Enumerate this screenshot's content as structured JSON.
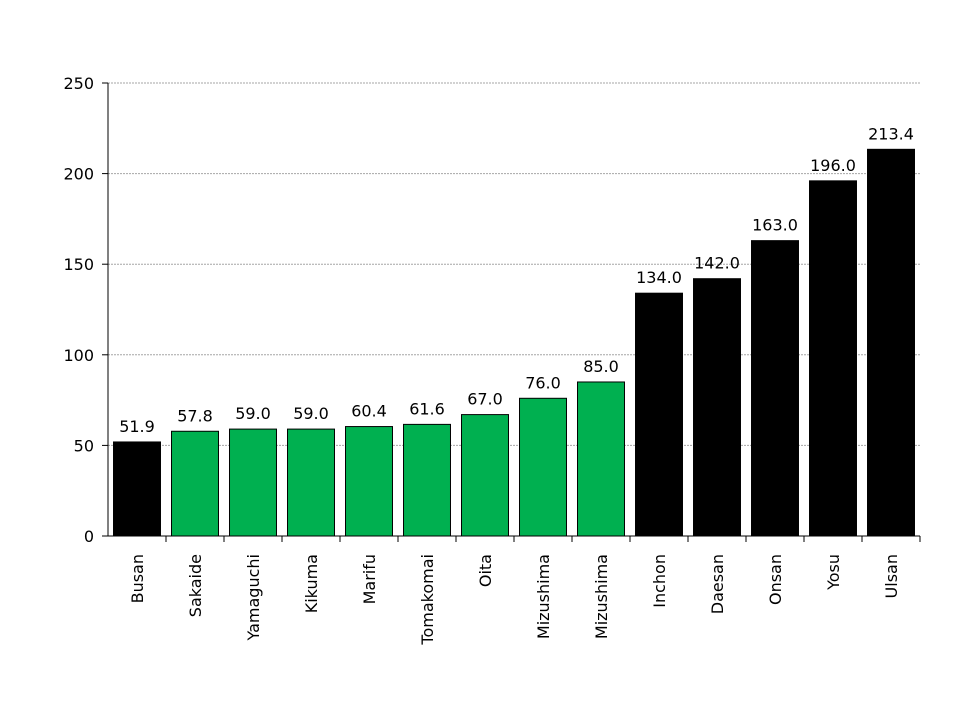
{
  "chart_data": {
    "type": "bar",
    "categories": [
      "Busan",
      "Sakaide",
      "Yamaguchi",
      "Kikuma",
      "Marifu",
      "Tomakomai",
      "Oita",
      "Mizushima",
      "Mizushima",
      "Inchon",
      "Daesan",
      "Onsan",
      "Yosu",
      "Ulsan"
    ],
    "values": [
      51.9,
      57.8,
      59.0,
      59.0,
      60.4,
      61.6,
      67.0,
      76.0,
      85.0,
      134.0,
      142.0,
      163.0,
      196.0,
      213.4
    ],
    "data_labels": [
      "51.9",
      "57.8",
      "59.0",
      "59.0",
      "60.4",
      "61.6",
      "67.0",
      "76.0",
      "85.0",
      "134.0",
      "142.0",
      "163.0",
      "196.0",
      "213.4"
    ],
    "bar_colors": [
      "#000000",
      "#00b050",
      "#00b050",
      "#00b050",
      "#00b050",
      "#00b050",
      "#00b050",
      "#00b050",
      "#00b050",
      "#000000",
      "#000000",
      "#000000",
      "#000000",
      "#000000"
    ],
    "title": "",
    "xlabel": "",
    "ylabel": "",
    "ylim": [
      0,
      250
    ],
    "yticks": [
      0,
      50,
      100,
      150,
      200,
      250
    ],
    "grid": true,
    "legend": "none"
  }
}
